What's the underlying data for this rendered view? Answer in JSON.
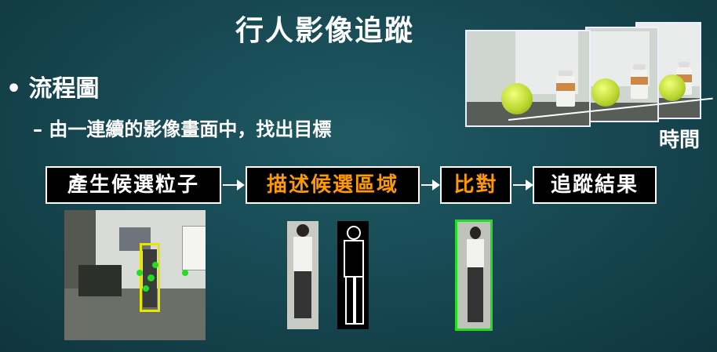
{
  "slide": {
    "title": "行人影像追蹤",
    "bullet": "流程圖",
    "subbullet": "– 由一連續的影像畫面中，找出目標",
    "time_label": "時間",
    "steps": [
      "產生候選粒子",
      "描述候選區域",
      "比對",
      "追蹤結果"
    ],
    "colors": {
      "background": "#164650",
      "highlight": "#ff9900",
      "match_box": "#22dd22",
      "particle_box": "#e6e600"
    }
  }
}
